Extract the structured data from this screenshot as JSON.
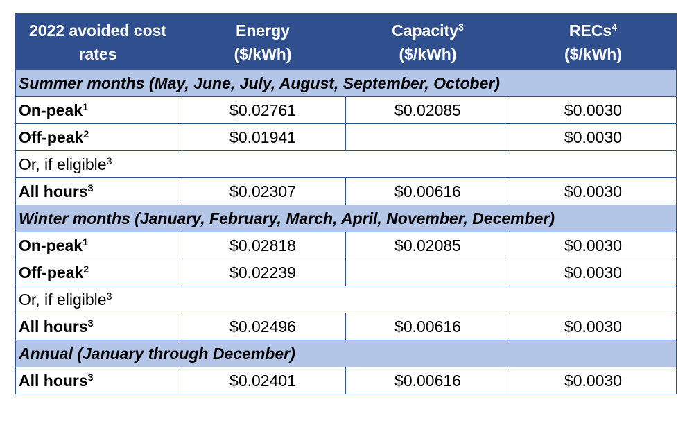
{
  "headers": {
    "col1_line1": "2022 avoided cost",
    "col1_line2": "rates",
    "col2_line1": "Energy",
    "col2_line2": "($/kWh)",
    "col3_line1": "Capacity",
    "col3_sup": "3",
    "col3_line2": "($/kWh)",
    "col4_line1": "RECs",
    "col4_sup": "4",
    "col4_line2": "($/kWh)"
  },
  "summer": {
    "title": "Summer months (May, June, July, August, September, October)",
    "onpeak": {
      "label": "On-peak",
      "sup": "1",
      "energy": "$0.02761",
      "capacity": "$0.02085",
      "recs": "$0.0030"
    },
    "offpeak": {
      "label": "Off-peak",
      "sup": "2",
      "energy": "$0.01941",
      "capacity": "",
      "recs": "$0.0030"
    },
    "eligible": {
      "label": "Or, if eligible",
      "sup": "3"
    },
    "allhours": {
      "label": "All hours",
      "sup": "3",
      "energy": "$0.02307",
      "capacity": "$0.00616",
      "recs": "$0.0030"
    }
  },
  "winter": {
    "title": "Winter months (January, February, March, April, November, December)",
    "onpeak": {
      "label": "On-peak",
      "sup": "1",
      "energy": "$0.02818",
      "capacity": "$0.02085",
      "recs": "$0.0030"
    },
    "offpeak": {
      "label": "Off-peak",
      "sup": "2",
      "energy": "$0.02239",
      "capacity": "",
      "recs": "$0.0030"
    },
    "eligible": {
      "label": "Or, if eligible",
      "sup": "3"
    },
    "allhours": {
      "label": "All hours",
      "sup": "3",
      "energy": "$0.02496",
      "capacity": "$0.00616",
      "recs": "$0.0030"
    }
  },
  "annual": {
    "title": "Annual (January through December)",
    "allhours": {
      "label": "All hours",
      "sup": "3",
      "energy": "$0.02401",
      "capacity": "$0.00616",
      "recs": "$0.0030"
    }
  },
  "colors": {
    "header_bg": "#2f4f8f",
    "section_bg": "#b4c6e7",
    "border": "#2f4f8f"
  }
}
